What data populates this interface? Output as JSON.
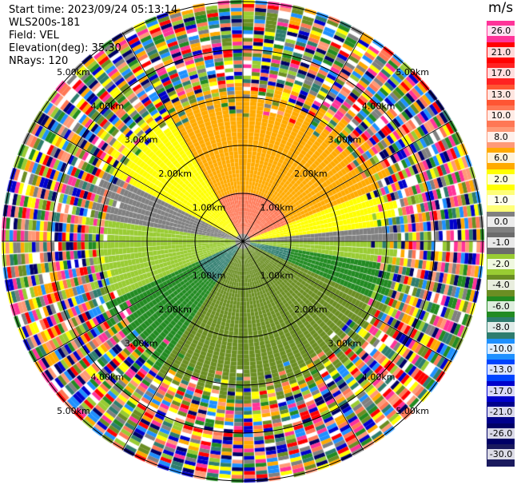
{
  "info": {
    "start_time": "Start time: 2023/09/24 05:13:14",
    "station": "WLS200s-181",
    "field": "Field: VEL",
    "elevation": "Elevation(deg): 35.30",
    "nrays": "NRays: 120"
  },
  "colorbar": {
    "unit": "m/s",
    "levels": [
      {
        "label": "26.0",
        "color": "#ff3399"
      },
      {
        "label": "21.0",
        "color": "#ff0000"
      },
      {
        "label": "17.0",
        "color": "#ff2222"
      },
      {
        "label": "13.0",
        "color": "#ff5533"
      },
      {
        "label": "10.0",
        "color": "#ff7755"
      },
      {
        "label": "8.0",
        "color": "#ff9977"
      },
      {
        "label": "6.0",
        "color": "#ffaa00"
      },
      {
        "label": "2.0",
        "color": "#ffff00"
      },
      {
        "label": "1.0",
        "color": "#ffff77"
      },
      {
        "label": "0.0",
        "color": "#808080"
      },
      {
        "label": "-1.0",
        "color": "#6b6b6b"
      },
      {
        "label": "-2.0",
        "color": "#99cc33"
      },
      {
        "label": "-4.0",
        "color": "#6b8e23"
      },
      {
        "label": "-6.0",
        "color": "#228b22"
      },
      {
        "label": "-8.0",
        "color": "#2e7d6e"
      },
      {
        "label": "-10.0",
        "color": "#1e90ff"
      },
      {
        "label": "-13.0",
        "color": "#0044ff"
      },
      {
        "label": "-17.0",
        "color": "#0000cc"
      },
      {
        "label": "-21.0",
        "color": "#00008b"
      },
      {
        "label": "-26.0",
        "color": "#000066"
      },
      {
        "label": "-30.0",
        "color": "#1a1a5e"
      }
    ]
  },
  "range_labels": [
    "1.00km",
    "2.00km",
    "3.00km",
    "4.00km",
    "5.00km"
  ]
}
